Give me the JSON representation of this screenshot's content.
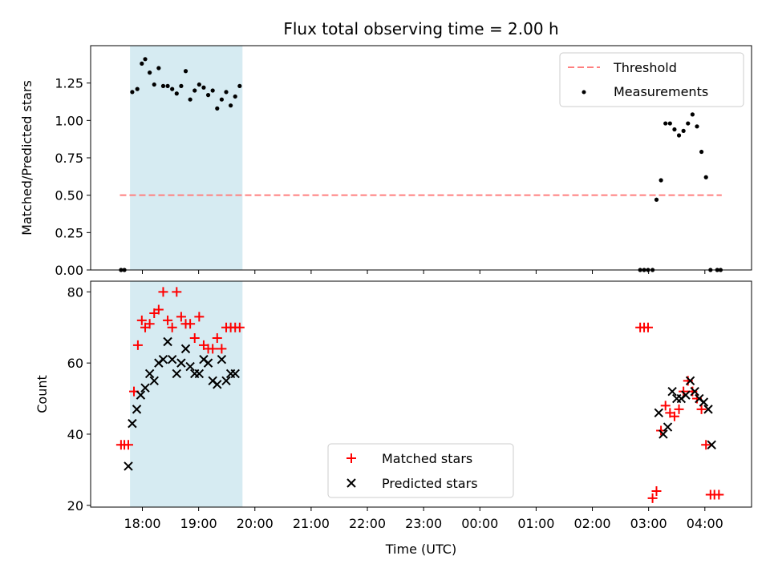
{
  "chart_data": [
    {
      "type": "scatter",
      "title": "Flux total observing time = 2.00 h",
      "xlabel": "",
      "ylabel": "Matched/Predicted stars",
      "x_unit": "hours since 00:00 UTC (day 1)",
      "xlim": [
        -6.92,
        4.83
      ],
      "ylim": [
        0,
        1.5
      ],
      "yticks": [
        "0.00",
        "0.25",
        "0.50",
        "0.75",
        "1.00",
        "1.25"
      ],
      "ytick_values": [
        0,
        0.25,
        0.5,
        0.75,
        1.0,
        1.25
      ],
      "xtick_values": [
        -6,
        -5,
        -4,
        -3,
        -2,
        -1,
        0,
        1,
        2,
        3,
        4
      ],
      "shaded_span": [
        -6.22,
        -4.22
      ],
      "legend_position": "top-right",
      "threshold": {
        "name": "Threshold",
        "value": 0.5,
        "x_range": [
          -6.4,
          4.3
        ],
        "color": "#ff7f7f"
      },
      "series": [
        {
          "name": "Measurements",
          "color": "#000000",
          "x": [
            -6.38,
            -6.32,
            -6.18,
            -6.09,
            -6.01,
            -5.95,
            -5.87,
            -5.79,
            -5.71,
            -5.63,
            -5.55,
            -5.47,
            -5.39,
            -5.31,
            -5.23,
            -5.15,
            -5.07,
            -4.99,
            -4.91,
            -4.83,
            -4.75,
            -4.67,
            -4.59,
            -4.51,
            -4.43,
            -4.35,
            -4.27,
            2.85,
            2.92,
            2.99,
            3.07,
            3.14,
            3.22,
            3.3,
            3.38,
            3.46,
            3.54,
            3.62,
            3.7,
            3.78,
            3.86,
            3.94,
            4.02,
            4.1,
            4.22,
            4.28
          ],
          "values": [
            0.0,
            0.0,
            1.19,
            1.21,
            1.38,
            1.41,
            1.32,
            1.24,
            1.35,
            1.23,
            1.23,
            1.21,
            1.18,
            1.23,
            1.33,
            1.14,
            1.2,
            1.24,
            1.22,
            1.17,
            1.2,
            1.08,
            1.14,
            1.19,
            1.1,
            1.16,
            1.23,
            0.0,
            0.0,
            0.0,
            0.0,
            0.47,
            0.6,
            0.98,
            0.98,
            0.94,
            0.9,
            0.93,
            0.98,
            1.04,
            0.96,
            0.79,
            0.62,
            0.0,
            0.0,
            0.0
          ]
        }
      ]
    },
    {
      "type": "scatter",
      "title": "",
      "xlabel": "Time (UTC)",
      "ylabel": "Count",
      "x_unit": "hours since 00:00 UTC (day 1)",
      "xlim": [
        -6.92,
        4.83
      ],
      "ylim": [
        19.5,
        83
      ],
      "yticks": [
        "20",
        "40",
        "60",
        "80"
      ],
      "ytick_values": [
        20,
        40,
        60,
        80
      ],
      "xticks": [
        "18:00",
        "19:00",
        "20:00",
        "21:00",
        "22:00",
        "23:00",
        "00:00",
        "01:00",
        "02:00",
        "03:00",
        "04:00"
      ],
      "xtick_values": [
        -6,
        -5,
        -4,
        -3,
        -2,
        -1,
        0,
        1,
        2,
        3,
        4
      ],
      "shaded_span": [
        -6.22,
        -4.22
      ],
      "legend_position": "bottom-center",
      "series": [
        {
          "name": "Matched stars",
          "marker": "plus",
          "color": "#ff0000",
          "x": [
            -6.38,
            -6.32,
            -6.25,
            -6.15,
            -6.08,
            -6.01,
            -5.95,
            -5.87,
            -5.79,
            -5.71,
            -5.63,
            -5.55,
            -5.47,
            -5.39,
            -5.31,
            -5.23,
            -5.15,
            -5.07,
            -4.99,
            -4.91,
            -4.83,
            -4.75,
            -4.67,
            -4.59,
            -4.51,
            -4.43,
            -4.35,
            -4.27,
            2.85,
            2.92,
            2.99,
            3.07,
            3.14,
            3.22,
            3.3,
            3.38,
            3.46,
            3.54,
            3.62,
            3.7,
            3.78,
            3.86,
            3.94,
            4.02,
            4.1,
            4.17,
            4.25
          ],
          "values": [
            37,
            37,
            37,
            52,
            65,
            72,
            70,
            71,
            74,
            75,
            80,
            72,
            70,
            80,
            73,
            71,
            71,
            67,
            73,
            65,
            64,
            64,
            67,
            64,
            70,
            70,
            70,
            70,
            70,
            70,
            70,
            22,
            24,
            41,
            48,
            46,
            45,
            47,
            52,
            55,
            52,
            50,
            47,
            37,
            23,
            23,
            23
          ],
          "x_fix": true
        },
        {
          "name": "Predicted stars",
          "marker": "x",
          "color": "#000000",
          "x": [
            -6.25,
            -6.18,
            -6.1,
            -6.03,
            -5.95,
            -5.87,
            -5.79,
            -5.71,
            -5.63,
            -5.55,
            -5.47,
            -5.39,
            -5.31,
            -5.23,
            -5.15,
            -5.07,
            -4.99,
            -4.91,
            -4.83,
            -4.75,
            -4.67,
            -4.59,
            -4.51,
            -4.43,
            -4.35,
            3.18,
            3.26,
            3.34,
            3.42,
            3.5,
            3.58,
            3.66,
            3.74,
            3.82,
            3.9,
            3.98,
            4.06,
            4.12
          ],
          "values": [
            31,
            43,
            47,
            51,
            53,
            57,
            55,
            60,
            61,
            66,
            61,
            57,
            60,
            64,
            59,
            57,
            57,
            61,
            60,
            55,
            54,
            61,
            55,
            57,
            57,
            46,
            40,
            42,
            52,
            50,
            50,
            51,
            55,
            52,
            50,
            49,
            47,
            37
          ]
        }
      ]
    }
  ]
}
